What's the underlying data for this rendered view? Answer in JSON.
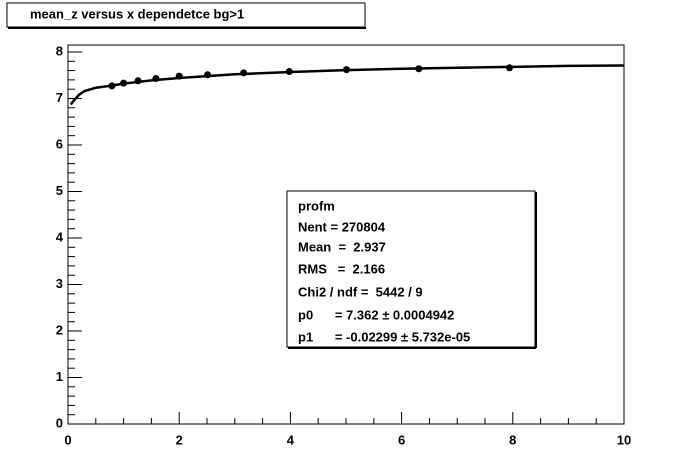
{
  "chart_data": {
    "type": "scatter",
    "title": "mean_z versus x dependetce bg>1",
    "x": [
      0.79,
      1.0,
      1.26,
      1.58,
      2.0,
      2.51,
      3.16,
      3.98,
      5.01,
      6.31,
      7.94
    ],
    "series": [
      {
        "color": "#000000",
        "values": [
          7.27,
          7.33,
          7.38,
          7.43,
          7.48,
          7.51,
          7.55,
          7.58,
          7.62,
          7.64,
          7.66
        ]
      }
    ],
    "fit": {
      "color": "#000000",
      "x": [
        0.05,
        0.1,
        0.2,
        0.3,
        0.5,
        0.8,
        1,
        1.5,
        2,
        3,
        4,
        5,
        6,
        7,
        8,
        9,
        10
      ],
      "values": [
        6.87,
        6.95,
        7.08,
        7.16,
        7.23,
        7.28,
        7.32,
        7.39,
        7.44,
        7.52,
        7.57,
        7.61,
        7.64,
        7.66,
        7.68,
        7.7,
        7.71
      ]
    },
    "xlim": [
      0,
      10
    ],
    "xticks": [
      0,
      2,
      4,
      6,
      8,
      10
    ],
    "ylim": [
      0,
      8.15
    ],
    "yticks": [
      0,
      1,
      2,
      3,
      4,
      5,
      6,
      7,
      8
    ],
    "stats": {
      "title": "profm",
      "lines": [
        "Nent = 270804",
        "Mean  =  2.937",
        "RMS   =  2.166",
        "Chi2 / ndf =  5442 / 9",
        "p0      = 7.362 ± 0.0004942",
        "p1      = -0.02299 ± 5.732e-05"
      ]
    }
  }
}
